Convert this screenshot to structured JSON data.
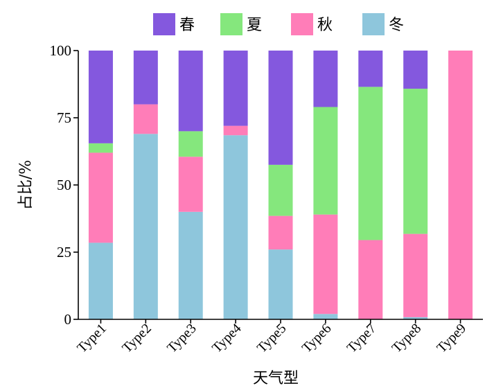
{
  "chart_data": {
    "type": "bar",
    "stacked": true,
    "title": "",
    "xlabel": "天气型",
    "ylabel": "占比/%",
    "ylim": [
      0,
      100
    ],
    "yticks": [
      "0",
      "25",
      "50",
      "75",
      "100"
    ],
    "grid": false,
    "legend_position": "top",
    "categories": [
      "Type1",
      "Type2",
      "Type3",
      "Type4",
      "Type5",
      "Type6",
      "Type7",
      "Type8",
      "Type9"
    ],
    "series": [
      {
        "name": "冬",
        "color": "#8ec6dc",
        "values": [
          28.5,
          69,
          40,
          68.5,
          26,
          2,
          0,
          0.8,
          0
        ]
      },
      {
        "name": "秋",
        "color": "#ff7db8",
        "values": [
          33.5,
          11,
          20.5,
          3.5,
          12.5,
          37,
          29.5,
          31,
          100
        ]
      },
      {
        "name": "夏",
        "color": "#85e77d",
        "values": [
          3.5,
          0,
          9.5,
          0,
          19,
          40,
          57,
          54,
          0
        ]
      },
      {
        "name": "春",
        "color": "#8458de",
        "values": [
          34.5,
          20,
          30,
          28,
          42.5,
          21,
          13.5,
          14.2,
          0
        ]
      }
    ],
    "legend_order": [
      "春",
      "夏",
      "秋",
      "冬"
    ]
  }
}
